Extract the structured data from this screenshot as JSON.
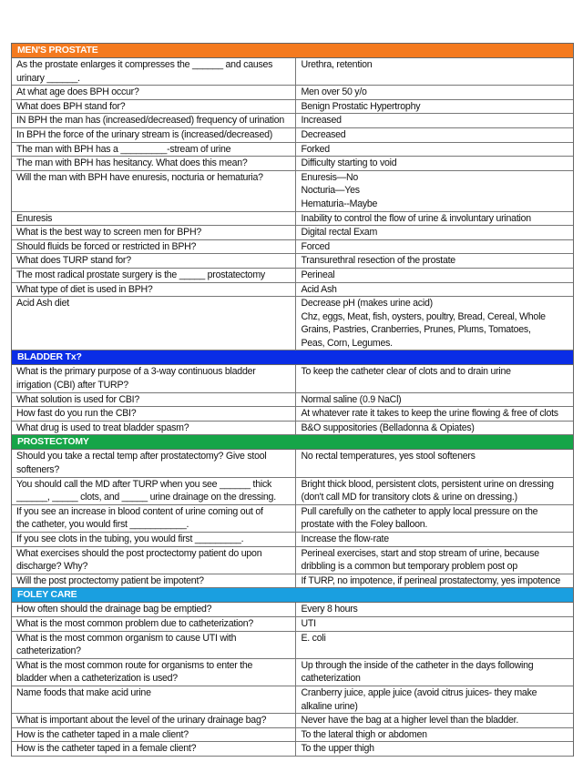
{
  "sections": [
    {
      "title": "MEN'S PROSTATE",
      "color": "#f47a1f",
      "rows": [
        {
          "q": "As the prostate enlarges it compresses the ______ and causes\nurinary ______.",
          "a": "Urethra, retention"
        },
        {
          "q": "At what age does BPH occur?",
          "a": "Men over 50 y/o"
        },
        {
          "q": "What does BPH stand for?",
          "a": "Benign Prostatic Hypertrophy"
        },
        {
          "q": "IN BPH the man has (increased/decreased) frequency of urination",
          "a": "Increased"
        },
        {
          "q": "In BPH the force of the urinary stream is (increased/decreased)",
          "a": "Decreased"
        },
        {
          "q": "The man with BPH has a _________-stream of urine",
          "a": "Forked"
        },
        {
          "q": "The man with BPH has hesitancy. What does this mean?",
          "a": "Difficulty starting to void"
        },
        {
          "q": "Will the man with BPH have enuresis, nocturia or hematuria?",
          "a": "Enuresis—No\nNocturia—Yes\nHematuria--Maybe"
        },
        {
          "q": "Enuresis",
          "a": "Inability to control the flow of urine & involuntary urination"
        },
        {
          "q": "What is the best way to screen men for BPH?",
          "a": "Digital rectal Exam"
        },
        {
          "q": "Should fluids be forced or restricted in BPH?",
          "a": "Forced"
        },
        {
          "q": "What does TURP stand for?",
          "a": "Transurethral resection of the prostate"
        },
        {
          "q": "The most radical prostate surgery is the _____ prostatectomy",
          "a": "Perineal"
        },
        {
          "q": "What type of diet is used in BPH?",
          "a": "Acid Ash"
        },
        {
          "q": "Acid Ash diet",
          "a": "Decrease pH (makes urine acid)\nChz, eggs, Meat, fish, oysters, poultry, Bread, Cereal, Whole\nGrains, Pastries, Cranberries, Prunes, Plums, Tomatoes,\nPeas, Corn, Legumes."
        }
      ]
    },
    {
      "title": "BLADDER Tx?",
      "color": "#0a2de6",
      "rows": [
        {
          "q": "What is the primary purpose of a 3-way continuous bladder\nirrigation (CBI) after TURP?",
          "a": "To keep the catheter clear of clots and to drain urine"
        },
        {
          "q": "What solution is used for CBI?",
          "a": "Normal saline (0.9 NaCl)"
        },
        {
          "q": "How fast do you run the CBI?",
          "a": "At whatever rate it takes to keep the urine flowing & free of clots"
        },
        {
          "q": "What drug is used to treat bladder spasm?",
          "a": "B&O suppositories (Belladonna & Opiates)"
        }
      ]
    },
    {
      "title": "PROSTECTOMY",
      "color": "#16a548",
      "rows": [
        {
          "q": "Should you take a rectal temp after prostatectomy? Give stool\nsofteners?",
          "a": "No rectal temperatures, yes stool softeners"
        },
        {
          "q": "You should call the MD after TURP when you see ______ thick\n______, _____ clots, and _____ urine drainage on the dressing.",
          "a": "Bright thick blood, persistent clots, persistent urine on dressing\n(don't call MD for transitory clots & urine on dressing.)"
        },
        {
          "q": "If you see an increase in blood content of urine coming out of\nthe catheter, you would first ___________.",
          "a": "Pull carefully on the catheter to apply local pressure on the\nprostate with the Foley balloon."
        },
        {
          "q": "If you see clots in the tubing, you would first _________.",
          "a": "Increase the flow-rate"
        },
        {
          "q": "What exercises should the post proctectomy patient do upon\ndischarge? Why?",
          "a": "Perineal exercises, start and stop stream of urine, because\ndribbling is a common but temporary problem post op"
        },
        {
          "q": "Will the post proctectomy patient be impotent?",
          "a": "If TURP, no impotence, if perineal prostatectomy, yes impotence"
        }
      ]
    },
    {
      "title": "FOLEY CARE",
      "color": "#1a9fe0",
      "rows": [
        {
          "q": "How often should the drainage bag be emptied?",
          "a": "Every 8 hours"
        },
        {
          "q": "What is the most common problem due to catheterization?",
          "a": "UTI"
        },
        {
          "q": "What is the most common organism to cause UTI with\ncatheterization?",
          "a": "E. coli"
        },
        {
          "q": "What is the most common route for organisms to enter the\nbladder when a catheterization is used?",
          "a": "Up through the inside of the catheter in the days following\ncatheterization"
        },
        {
          "q": "Name foods that make acid urine",
          "a": "Cranberry juice, apple juice (avoid citrus juices- they make\nalkaline urine)"
        },
        {
          "q": "What is important about the level of the urinary drainage bag?",
          "a": "Never have the bag at a higher level than the bladder."
        },
        {
          "q": "How is the catheter taped in a male client?",
          "a": "To the lateral thigh or abdomen"
        },
        {
          "q": "How is the catheter taped in a female client?",
          "a": "To the upper thigh"
        }
      ]
    }
  ]
}
